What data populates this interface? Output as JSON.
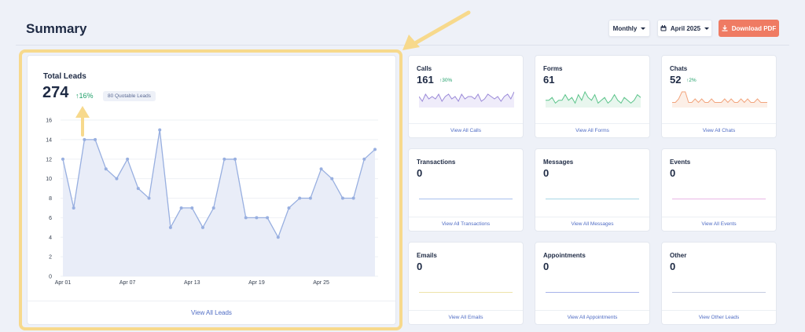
{
  "header": {
    "title": "Summary",
    "period_label": "Monthly",
    "month_label": "April 2025",
    "download_label": "Download PDF",
    "icons": [
      "chevron-down-icon",
      "calendar-icon",
      "download-icon"
    ]
  },
  "leads": {
    "title": "Total Leads",
    "value": "274",
    "change": "16%",
    "quotable": "80 Quotable Leads",
    "link": "View All Leads"
  },
  "chart_data": {
    "type": "area",
    "x_tick_labels": [
      "Apr 01",
      "Apr 07",
      "Apr 13",
      "Apr 19",
      "Apr 25"
    ],
    "y_tick_labels": [
      "0",
      "2",
      "4",
      "6",
      "8",
      "10",
      "12",
      "14",
      "16"
    ],
    "ylim": [
      0,
      16
    ],
    "days": 30,
    "values": [
      12,
      7,
      14,
      14,
      11,
      10,
      12,
      9,
      8,
      15,
      5,
      7,
      7,
      5,
      7,
      12,
      12,
      6,
      6,
      6,
      4,
      7,
      8,
      8,
      11,
      10,
      8,
      8,
      12,
      13
    ],
    "line_color": "#98afe0",
    "fill_color": "#e9edf8",
    "grid": true
  },
  "cards": [
    {
      "title": "Calls",
      "value": "161",
      "change": "30%",
      "link": "View All Calls",
      "color": "#9b8ad8",
      "fill": "#efecfa",
      "spark": [
        4,
        2,
        5,
        3,
        4,
        3,
        5,
        2,
        4,
        5,
        3,
        4,
        2,
        5,
        3,
        4,
        4,
        3,
        5,
        2,
        3,
        5,
        4,
        3,
        4,
        2,
        4,
        5,
        3,
        6
      ]
    },
    {
      "title": "Forms",
      "value": "61",
      "change": "",
      "link": "View All Forms",
      "color": "#5cc48b",
      "fill": "#e8f6ee",
      "spark": [
        2,
        2,
        3,
        1,
        2,
        2,
        4,
        2,
        3,
        1,
        4,
        2,
        5,
        3,
        2,
        4,
        1,
        2,
        3,
        1,
        2,
        4,
        2,
        1,
        3,
        2,
        1,
        2,
        4,
        3
      ]
    },
    {
      "title": "Chats",
      "value": "52",
      "change": "2%",
      "link": "View All Chats",
      "color": "#f2a47c",
      "fill": "#fcefe7",
      "spark": [
        1,
        1,
        2,
        4,
        4,
        1,
        1,
        2,
        1,
        2,
        1,
        1,
        2,
        1,
        1,
        1,
        2,
        1,
        2,
        1,
        1,
        2,
        1,
        2,
        1,
        1,
        2,
        1,
        1,
        1
      ]
    },
    {
      "title": "Transactions",
      "value": "0",
      "change": "",
      "link": "View All Transactions",
      "color": "#a9c0ee",
      "spark": []
    },
    {
      "title": "Messages",
      "value": "0",
      "change": "",
      "link": "View All Messages",
      "color": "#a8d8e6",
      "spark": []
    },
    {
      "title": "Events",
      "value": "0",
      "change": "",
      "link": "View All Events",
      "color": "#e9b8e6",
      "spark": []
    },
    {
      "title": "Emails",
      "value": "0",
      "change": "",
      "link": "View All Emails",
      "color": "#eee3a9",
      "spark": []
    },
    {
      "title": "Appointments",
      "value": "0",
      "change": "",
      "link": "View All Appointments",
      "color": "#a7b2ea",
      "spark": []
    },
    {
      "title": "Other",
      "value": "0",
      "change": "",
      "link": "View Other Leads",
      "color": "#c5cbe0",
      "spark": []
    }
  ]
}
